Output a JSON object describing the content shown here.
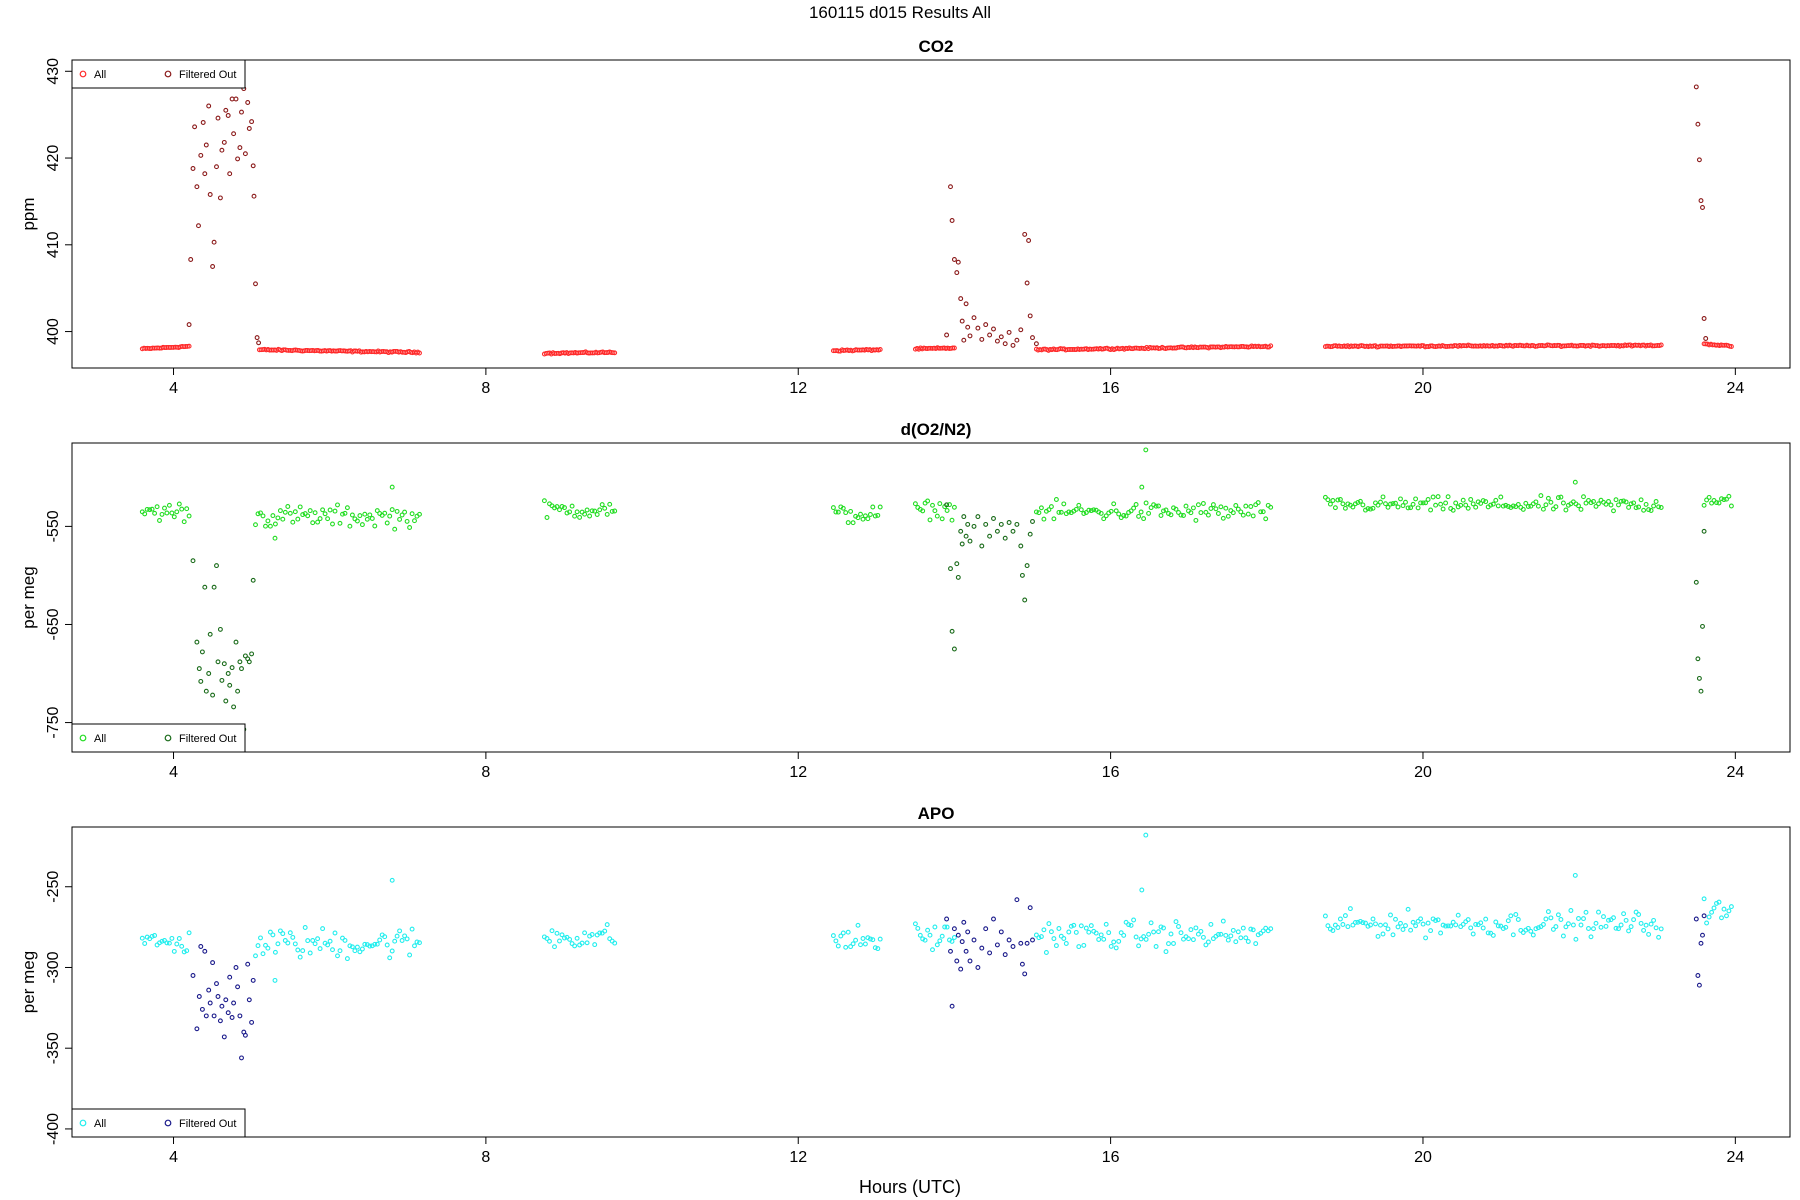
{
  "figure_title": "160115   d015   Results All",
  "xlabel": "Hours (UTC)",
  "legend_labels": {
    "all": "All",
    "filtered": "Filtered Out"
  },
  "chart_data": [
    {
      "type": "scatter",
      "title": "CO2",
      "ylabel": "ppm",
      "xlim": [
        2.7,
        24.7
      ],
      "ylim": [
        395.8,
        431.3
      ],
      "xticks": [
        4,
        8,
        12,
        16,
        20,
        24
      ],
      "yticks": [
        400,
        410,
        420,
        430
      ],
      "grid": false,
      "legend_position": "top-left",
      "colors": {
        "all": "#ff2a2a",
        "filtered": "#8b1a1a"
      },
      "baseline_segments": [
        {
          "x": [
            3.6,
            4.2
          ],
          "y": [
            398.0,
            398.3
          ]
        },
        {
          "x": [
            5.1,
            7.15
          ],
          "y": [
            397.9,
            397.6
          ]
        },
        {
          "x": [
            8.75,
            9.65
          ],
          "y": [
            397.5,
            397.6
          ]
        },
        {
          "x": [
            12.45,
            13.05
          ],
          "y": [
            397.8,
            397.9
          ]
        },
        {
          "x": [
            13.5,
            14.0
          ],
          "y": [
            398.0,
            398.1
          ]
        },
        {
          "x": [
            15.05,
            18.05
          ],
          "y": [
            397.9,
            398.3
          ]
        },
        {
          "x": [
            18.75,
            23.05
          ],
          "y": [
            398.3,
            398.4
          ]
        },
        {
          "x": [
            23.6,
            23.95
          ],
          "y": [
            398.6,
            398.3
          ]
        }
      ],
      "filtered_points": [
        [
          4.2,
          400.8
        ],
        [
          4.22,
          408.3
        ],
        [
          4.25,
          418.8
        ],
        [
          4.27,
          423.6
        ],
        [
          4.3,
          416.7
        ],
        [
          4.32,
          412.2
        ],
        [
          4.35,
          420.3
        ],
        [
          4.38,
          424.1
        ],
        [
          4.4,
          418.2
        ],
        [
          4.42,
          421.5
        ],
        [
          4.45,
          426.0
        ],
        [
          4.47,
          415.8
        ],
        [
          4.5,
          407.5
        ],
        [
          4.52,
          410.3
        ],
        [
          4.55,
          419.0
        ],
        [
          4.57,
          424.6
        ],
        [
          4.6,
          415.4
        ],
        [
          4.62,
          420.9
        ],
        [
          4.65,
          421.8
        ],
        [
          4.67,
          425.5
        ],
        [
          4.7,
          424.9
        ],
        [
          4.72,
          418.2
        ],
        [
          4.75,
          426.8
        ],
        [
          4.77,
          422.8
        ],
        [
          4.8,
          426.8
        ],
        [
          4.82,
          419.9
        ],
        [
          4.85,
          421.2
        ],
        [
          4.87,
          425.3
        ],
        [
          4.9,
          428.0
        ],
        [
          4.92,
          420.5
        ],
        [
          4.95,
          426.4
        ],
        [
          4.97,
          423.4
        ],
        [
          5.0,
          424.2
        ],
        [
          5.02,
          419.1
        ],
        [
          5.03,
          415.6
        ],
        [
          5.05,
          405.5
        ],
        [
          5.07,
          399.3
        ],
        [
          5.09,
          398.7
        ],
        [
          13.9,
          399.6
        ],
        [
          13.95,
          416.7
        ],
        [
          13.97,
          412.8
        ],
        [
          14.0,
          408.3
        ],
        [
          14.03,
          406.8
        ],
        [
          14.05,
          408.0
        ],
        [
          14.08,
          403.8
        ],
        [
          14.1,
          401.2
        ],
        [
          14.12,
          399.0
        ],
        [
          14.15,
          403.2
        ],
        [
          14.17,
          400.5
        ],
        [
          14.2,
          399.5
        ],
        [
          14.25,
          401.6
        ],
        [
          14.3,
          400.4
        ],
        [
          14.35,
          399.1
        ],
        [
          14.4,
          400.8
        ],
        [
          14.45,
          399.6
        ],
        [
          14.5,
          400.3
        ],
        [
          14.55,
          398.9
        ],
        [
          14.6,
          399.4
        ],
        [
          14.65,
          398.6
        ],
        [
          14.7,
          399.9
        ],
        [
          14.75,
          398.4
        ],
        [
          14.8,
          399.0
        ],
        [
          14.85,
          400.2
        ],
        [
          14.9,
          411.2
        ],
        [
          14.93,
          405.6
        ],
        [
          14.95,
          410.5
        ],
        [
          14.97,
          401.8
        ],
        [
          15.0,
          399.3
        ],
        [
          15.05,
          398.6
        ],
        [
          23.5,
          428.2
        ],
        [
          23.52,
          423.9
        ],
        [
          23.54,
          419.8
        ],
        [
          23.56,
          415.1
        ],
        [
          23.58,
          414.3
        ],
        [
          23.6,
          401.5
        ],
        [
          23.62,
          399.2
        ]
      ]
    },
    {
      "type": "scatter",
      "title": "d(O2/N2)",
      "ylabel": "per meg",
      "xlim": [
        2.7,
        24.7
      ],
      "ylim": [
        -780,
        -465
      ],
      "xticks": [
        4,
        8,
        12,
        16,
        20,
        24
      ],
      "yticks": [
        -550,
        -650,
        -750
      ],
      "grid": false,
      "legend_position": "bottom-left",
      "colors": {
        "all": "#22dd22",
        "filtered": "#1a6b1a"
      },
      "all_segments": [
        {
          "x": [
            3.6,
            4.2
          ],
          "center": -535,
          "spread": 9
        },
        {
          "x": [
            5.05,
            7.15
          ],
          "center": -540,
          "spread": 10
        },
        {
          "x": [
            8.75,
            9.65
          ],
          "center": -533,
          "spread": 8
        },
        {
          "x": [
            12.45,
            13.05
          ],
          "center": -538,
          "spread": 9
        },
        {
          "x": [
            13.5,
            14.0
          ],
          "center": -533,
          "spread": 8
        },
        {
          "x": [
            15.05,
            18.05
          ],
          "center": -535,
          "spread": 9
        },
        {
          "x": [
            18.75,
            23.05
          ],
          "center": -528,
          "spread": 7
        },
        {
          "x": [
            23.6,
            23.95
          ],
          "center": -522,
          "spread": 8
        }
      ],
      "outlier_points": [
        [
          16.45,
          -472
        ],
        [
          21.95,
          -505
        ],
        [
          6.8,
          -510
        ],
        [
          16.4,
          -510
        ],
        [
          5.3,
          -562
        ]
      ],
      "filtered_points": [
        [
          4.25,
          -585
        ],
        [
          4.3,
          -668
        ],
        [
          4.33,
          -695
        ],
        [
          4.35,
          -708
        ],
        [
          4.37,
          -678
        ],
        [
          4.4,
          -612
        ],
        [
          4.42,
          -718
        ],
        [
          4.45,
          -700
        ],
        [
          4.47,
          -660
        ],
        [
          4.5,
          -722
        ],
        [
          4.52,
          -612
        ],
        [
          4.55,
          -590
        ],
        [
          4.57,
          -688
        ],
        [
          4.6,
          -655
        ],
        [
          4.62,
          -707
        ],
        [
          4.65,
          -690
        ],
        [
          4.67,
          -728
        ],
        [
          4.7,
          -700
        ],
        [
          4.72,
          -712
        ],
        [
          4.75,
          -694
        ],
        [
          4.77,
          -734
        ],
        [
          4.8,
          -668
        ],
        [
          4.82,
          -718
        ],
        [
          4.85,
          -688
        ],
        [
          4.87,
          -695
        ],
        [
          4.9,
          -757
        ],
        [
          4.92,
          -682
        ],
        [
          4.95,
          -685
        ],
        [
          4.97,
          -688
        ],
        [
          5.0,
          -680
        ],
        [
          5.02,
          -605
        ],
        [
          13.9,
          -528
        ],
        [
          13.95,
          -593
        ],
        [
          13.97,
          -657
        ],
        [
          14.0,
          -675
        ],
        [
          14.03,
          -588
        ],
        [
          14.05,
          -602
        ],
        [
          14.08,
          -555
        ],
        [
          14.1,
          -568
        ],
        [
          14.12,
          -540
        ],
        [
          14.15,
          -560
        ],
        [
          14.17,
          -548
        ],
        [
          14.2,
          -565
        ],
        [
          14.25,
          -550
        ],
        [
          14.3,
          -540
        ],
        [
          14.35,
          -570
        ],
        [
          14.4,
          -548
        ],
        [
          14.45,
          -560
        ],
        [
          14.5,
          -542
        ],
        [
          14.55,
          -555
        ],
        [
          14.6,
          -548
        ],
        [
          14.65,
          -562
        ],
        [
          14.7,
          -546
        ],
        [
          14.75,
          -555
        ],
        [
          14.8,
          -548
        ],
        [
          14.85,
          -570
        ],
        [
          14.87,
          -600
        ],
        [
          14.9,
          -625
        ],
        [
          14.93,
          -590
        ],
        [
          14.97,
          -558
        ],
        [
          15.0,
          -545
        ],
        [
          23.5,
          -607
        ],
        [
          23.52,
          -685
        ],
        [
          23.54,
          -705
        ],
        [
          23.56,
          -718
        ],
        [
          23.58,
          -652
        ],
        [
          23.6,
          -555
        ]
      ]
    },
    {
      "type": "scatter",
      "title": "APO",
      "ylabel": "per meg",
      "xlim": [
        2.7,
        24.7
      ],
      "ylim": [
        -405,
        -213
      ],
      "xticks": [
        4,
        8,
        12,
        16,
        20,
        24
      ],
      "yticks": [
        -250,
        -300,
        -350,
        -400
      ],
      "grid": false,
      "legend_position": "bottom-left",
      "colors": {
        "all": "#22eeee",
        "filtered": "#1a1a8b"
      },
      "all_segments": [
        {
          "x": [
            3.6,
            4.2
          ],
          "center": -285,
          "spread": 7
        },
        {
          "x": [
            5.05,
            7.15
          ],
          "center": -285,
          "spread": 9
        },
        {
          "x": [
            8.75,
            9.65
          ],
          "center": -281,
          "spread": 7
        },
        {
          "x": [
            12.45,
            13.05
          ],
          "center": -283,
          "spread": 8
        },
        {
          "x": [
            13.5,
            14.0
          ],
          "center": -281,
          "spread": 8
        },
        {
          "x": [
            15.05,
            18.05
          ],
          "center": -280,
          "spread": 8
        },
        {
          "x": [
            18.75,
            23.05
          ],
          "center": -273,
          "spread": 7
        },
        {
          "x": [
            23.6,
            23.95
          ],
          "center": -266,
          "spread": 8
        }
      ],
      "outlier_points": [
        [
          16.45,
          -218
        ],
        [
          21.95,
          -243
        ],
        [
          6.8,
          -246
        ],
        [
          16.4,
          -252
        ],
        [
          5.3,
          -308
        ]
      ],
      "filtered_points": [
        [
          4.25,
          -305
        ],
        [
          4.3,
          -338
        ],
        [
          4.33,
          -318
        ],
        [
          4.35,
          -287
        ],
        [
          4.37,
          -326
        ],
        [
          4.4,
          -290
        ],
        [
          4.42,
          -330
        ],
        [
          4.45,
          -314
        ],
        [
          4.47,
          -322
        ],
        [
          4.5,
          -297
        ],
        [
          4.52,
          -330
        ],
        [
          4.55,
          -310
        ],
        [
          4.57,
          -318
        ],
        [
          4.6,
          -333
        ],
        [
          4.62,
          -324
        ],
        [
          4.65,
          -343
        ],
        [
          4.67,
          -320
        ],
        [
          4.7,
          -328
        ],
        [
          4.72,
          -306
        ],
        [
          4.75,
          -331
        ],
        [
          4.77,
          -322
        ],
        [
          4.8,
          -300
        ],
        [
          4.82,
          -312
        ],
        [
          4.85,
          -330
        ],
        [
          4.87,
          -356
        ],
        [
          4.9,
          -340
        ],
        [
          4.92,
          -342
        ],
        [
          4.95,
          -298
        ],
        [
          4.97,
          -320
        ],
        [
          5.0,
          -334
        ],
        [
          5.02,
          -308
        ],
        [
          13.9,
          -270
        ],
        [
          13.95,
          -290
        ],
        [
          13.97,
          -324
        ],
        [
          14.0,
          -276
        ],
        [
          14.03,
          -296
        ],
        [
          14.05,
          -280
        ],
        [
          14.08,
          -301
        ],
        [
          14.1,
          -284
        ],
        [
          14.12,
          -272
        ],
        [
          14.15,
          -290
        ],
        [
          14.17,
          -278
        ],
        [
          14.2,
          -296
        ],
        [
          14.25,
          -283
        ],
        [
          14.3,
          -300
        ],
        [
          14.35,
          -288
        ],
        [
          14.4,
          -276
        ],
        [
          14.45,
          -291
        ],
        [
          14.5,
          -270
        ],
        [
          14.55,
          -286
        ],
        [
          14.6,
          -278
        ],
        [
          14.65,
          -292
        ],
        [
          14.7,
          -283
        ],
        [
          14.75,
          -287
        ],
        [
          14.8,
          -258
        ],
        [
          14.85,
          -285
        ],
        [
          14.87,
          -298
        ],
        [
          14.9,
          -304
        ],
        [
          14.93,
          -285
        ],
        [
          14.97,
          -263
        ],
        [
          15.0,
          -283
        ],
        [
          23.5,
          -270
        ],
        [
          23.52,
          -305
        ],
        [
          23.54,
          -311
        ],
        [
          23.56,
          -285
        ],
        [
          23.58,
          -280
        ],
        [
          23.6,
          -268
        ]
      ]
    }
  ]
}
